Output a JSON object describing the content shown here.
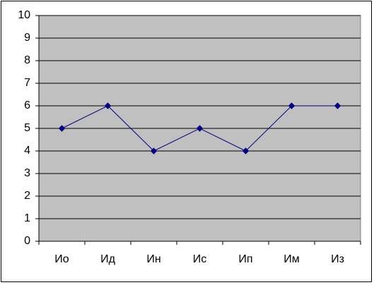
{
  "chart_data": {
    "type": "line",
    "categories": [
      "Ио",
      "Ид",
      "Ин",
      "Ис",
      "Ип",
      "Им",
      "Из"
    ],
    "values": [
      5,
      6,
      4,
      5,
      4,
      6,
      6
    ],
    "color": "#000080",
    "plot_background": "#c0c0c0",
    "ylim": [
      0,
      10
    ],
    "yticks": [
      0,
      1,
      2,
      3,
      4,
      5,
      6,
      7,
      8,
      9,
      10
    ],
    "grid": true
  }
}
